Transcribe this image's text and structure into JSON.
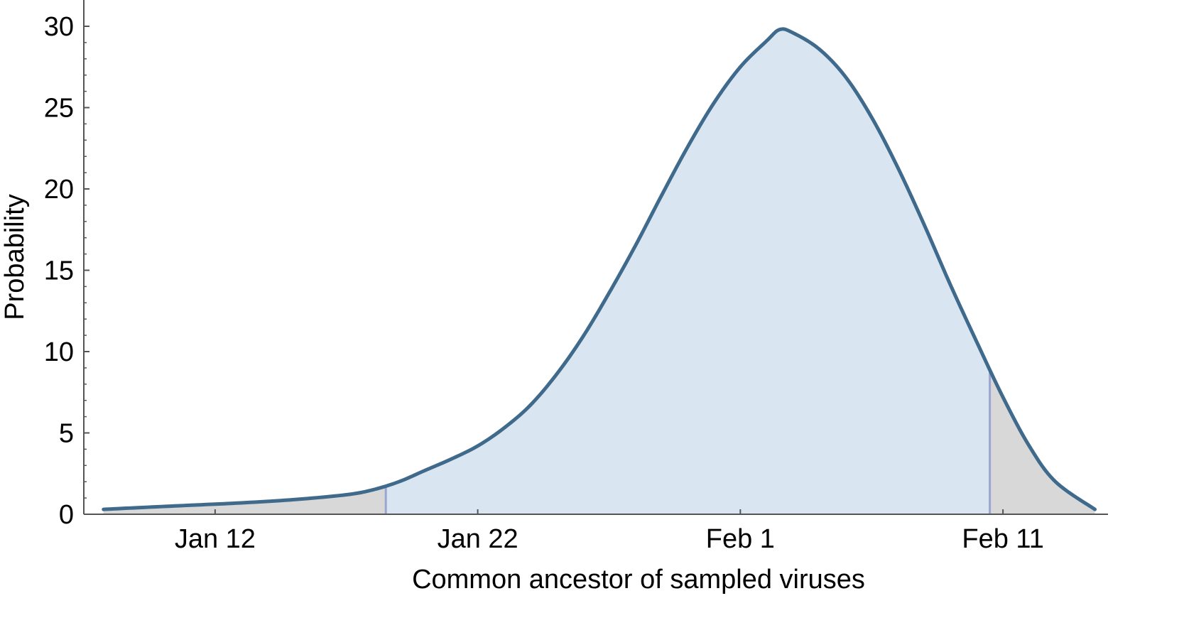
{
  "chart_data": {
    "type": "area",
    "title": "",
    "xlabel": "Common ancestor of sampled viruses",
    "ylabel": "Probability",
    "x_unit": "date",
    "ylim": [
      0,
      30
    ],
    "y_ticks": [
      0,
      5,
      10,
      15,
      20,
      25,
      30
    ],
    "x_ticks": [
      {
        "date": "2020-01-12",
        "label": "Jan 12"
      },
      {
        "date": "2020-01-22",
        "label": "Jan 22"
      },
      {
        "date": "2020-02-01",
        "label": "Feb 1"
      },
      {
        "date": "2020-02-11",
        "label": "Feb 11"
      }
    ],
    "xlim": [
      "2020-01-07",
      "2020-02-15"
    ],
    "grid": false,
    "series": [
      {
        "x": [
          "2020-01-07T18:00",
          "2020-01-09",
          "2020-01-11",
          "2020-01-13",
          "2020-01-15",
          "2020-01-17",
          "2020-01-18",
          "2020-01-19",
          "2020-01-20",
          "2020-01-21",
          "2020-01-22",
          "2020-01-23",
          "2020-01-24",
          "2020-01-25",
          "2020-01-26",
          "2020-01-27",
          "2020-01-28",
          "2020-01-29",
          "2020-01-30",
          "2020-01-31",
          "2020-02-01",
          "2020-02-02",
          "2020-02-02T12:00",
          "2020-02-03",
          "2020-02-04",
          "2020-02-05",
          "2020-02-06",
          "2020-02-07",
          "2020-02-08",
          "2020-02-09",
          "2020-02-10",
          "2020-02-11",
          "2020-02-12",
          "2020-02-13",
          "2020-02-14T12:00"
        ],
        "y": [
          0.3,
          0.4,
          0.55,
          0.7,
          0.9,
          1.2,
          1.5,
          2.0,
          2.7,
          3.4,
          4.2,
          5.3,
          6.7,
          8.6,
          10.9,
          13.6,
          16.5,
          19.6,
          22.6,
          25.3,
          27.5,
          29.1,
          29.8,
          29.6,
          28.6,
          26.9,
          24.4,
          21.3,
          17.8,
          14.1,
          10.6,
          7.2,
          4.2,
          2.0,
          0.3
        ]
      }
    ],
    "interval": {
      "start": "2020-01-18T12:00",
      "end": "2020-02-10T12:00"
    },
    "colors": {
      "line": "#3f6a8c",
      "interval_fill": "#d9e6f2",
      "tail_fill": "#d8d8d8",
      "boundary": "#9aa6cf",
      "axis": "#555555"
    }
  }
}
